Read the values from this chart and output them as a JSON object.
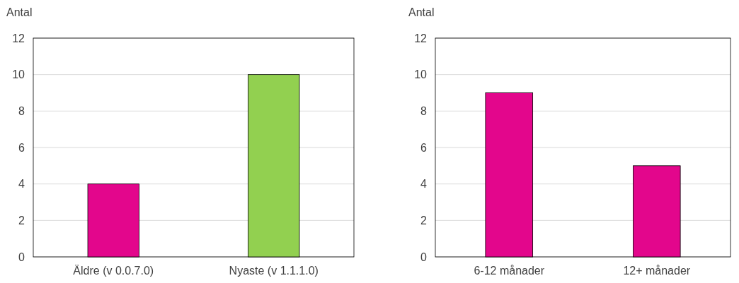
{
  "chart_data": [
    {
      "type": "bar",
      "ylabel": "Antal",
      "categories": [
        "Äldre (v 0.0.7.0)",
        "Nyaste (v 1.1.1.0)"
      ],
      "values": [
        4,
        10
      ],
      "colors": [
        "#e3068c",
        "#92d050"
      ],
      "ylim": [
        0,
        12
      ],
      "yticks": [
        0,
        2,
        4,
        6,
        8,
        10,
        12
      ],
      "grid": "y"
    },
    {
      "type": "bar",
      "ylabel": "Antal",
      "categories": [
        "6-12 månader",
        "12+ månader"
      ],
      "values": [
        9,
        5
      ],
      "colors": [
        "#e3068c",
        "#e3068c"
      ],
      "ylim": [
        0,
        12
      ],
      "yticks": [
        0,
        2,
        4,
        6,
        8,
        10,
        12
      ],
      "grid": "y"
    }
  ]
}
